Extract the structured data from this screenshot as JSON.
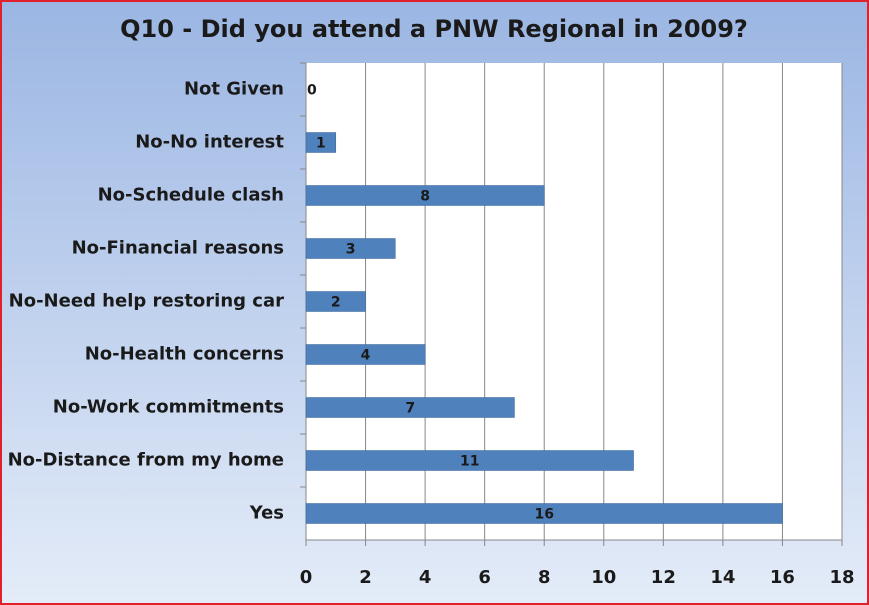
{
  "chart_data": {
    "type": "bar",
    "orientation": "horizontal",
    "title": "Q10 - Did you attend a PNW Regional in 2009?",
    "categories": [
      "Not Given",
      "No-No interest",
      "No-Schedule clash",
      "No-Financial reasons",
      "No-Need help restoring car",
      "No-Health concerns",
      "No-Work commitments",
      "No-Distance from my home",
      "Yes"
    ],
    "values": [
      0,
      1,
      8,
      3,
      2,
      4,
      7,
      11,
      16
    ],
    "color": "#4f81bd",
    "xlim": [
      0,
      18
    ],
    "xticks": [
      0,
      2,
      4,
      6,
      8,
      10,
      12,
      14,
      16,
      18
    ],
    "grid": true
  }
}
